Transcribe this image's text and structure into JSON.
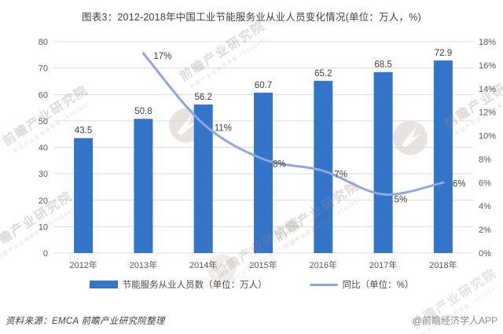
{
  "title": "图表3：2012-2018年中国工业节能服务业从业人员变化情况(单位：万人，%)",
  "chart_data": {
    "type": "bar",
    "combo": "bar+line",
    "title": "图表3：2012-2018年中国工业节能服务业从业人员变化情况(单位：万人，%)",
    "categories": [
      "2012年",
      "2013年",
      "2014年",
      "2015年",
      "2016年",
      "2017年",
      "2018年"
    ],
    "series": [
      {
        "name": "节能服务从业人员数（单位：万人）",
        "chart_type": "bar",
        "axis": "left",
        "values": [
          43.5,
          50.8,
          56.2,
          60.7,
          65.2,
          68.5,
          72.9
        ],
        "data_labels": [
          "43.5",
          "50.8",
          "56.2",
          "60.7",
          "65.2",
          "68.5",
          "72.9"
        ],
        "color": "#3474C9"
      },
      {
        "name": "同比（单位：%）",
        "chart_type": "line",
        "axis": "right",
        "categories": [
          "2013年",
          "2014年",
          "2015年",
          "2016年",
          "2017年",
          "2018年"
        ],
        "values": [
          17,
          11,
          8,
          7,
          5,
          6
        ],
        "data_labels": [
          "17%",
          "11%",
          "8%",
          "7%",
          "5%",
          "6%"
        ],
        "color": "#8FA6DF"
      }
    ],
    "left_axis": {
      "min": 0,
      "max": 80,
      "step": 10
    },
    "right_axis": {
      "min": 0,
      "max": 18,
      "step": 2,
      "suffix": "%"
    },
    "grid": true,
    "legend_position": "bottom",
    "colors": {
      "bar": "#3474C9",
      "line": "#8FA6DF",
      "gridline": "#dcdcdc",
      "tick_label": "#595959",
      "data_label": "#404040"
    }
  },
  "footer": {
    "source": "资料来源：EMCA 前瞻产业研究院整理",
    "credit": "@前瞻经济学人APP"
  },
  "watermark": {
    "brand": "前瞻产业研究院",
    "sub": "中国产业咨询领导者（839599）"
  }
}
